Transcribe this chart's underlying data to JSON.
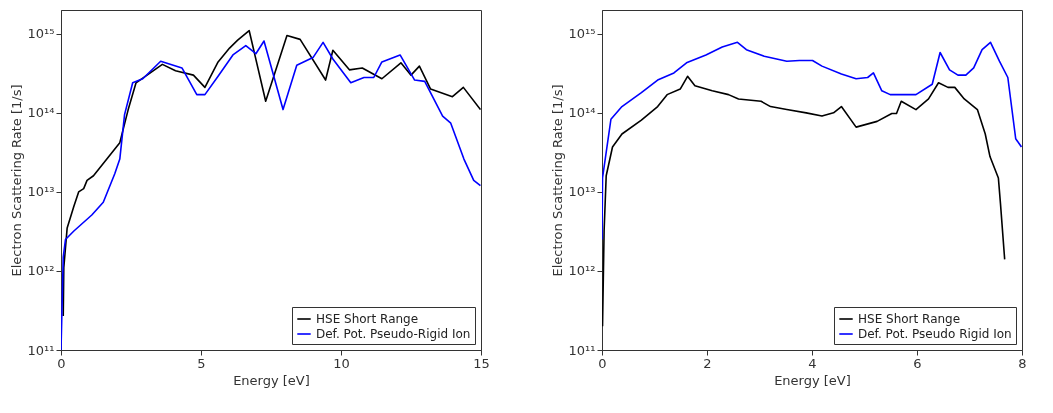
{
  "chart_data": [
    {
      "type": "line",
      "xlabel": "Energy [eV]",
      "ylabel": "Electron Scattering Rate [1/s]",
      "log": "y",
      "legend": "bottom right",
      "grid": false,
      "xlim": [
        0,
        15
      ],
      "xticks": [
        0,
        5,
        10,
        15
      ],
      "ylim": [
        100000000000.0,
        2000000000000000.0
      ],
      "yticks": [
        {
          "value": 100000000000.0,
          "label": "10¹¹"
        },
        {
          "value": 1000000000000.0,
          "label": "10¹²"
        },
        {
          "value": 10000000000000.0,
          "label": "10¹³"
        },
        {
          "value": 100000000000000.0,
          "label": "10¹⁴"
        },
        {
          "value": 1000000000000000.0,
          "label": "10¹⁵"
        }
      ],
      "series": [
        {
          "name": "HSE Short Range",
          "color": "#000000",
          "x": [
            0.08,
            0.1,
            0.22,
            0.46,
            0.63,
            0.81,
            0.93,
            1.16,
            2.1,
            2.4,
            2.68,
            3.62,
            4.09,
            4.73,
            5.14,
            5.61,
            6.02,
            6.31,
            6.72,
            7.31,
            8.07,
            8.54,
            9.45,
            9.71,
            10.3,
            10.76,
            11.46,
            12.14,
            12.5,
            12.8,
            13.2,
            13.98,
            14.37,
            14.98
          ],
          "values": [
            270000000000.0,
            1100000000000.0,
            3500000000000.0,
            6600000000000.0,
            10000000000000.0,
            11000000000000.0,
            14000000000000.0,
            16000000000000.0,
            42000000000000.0,
            110000000000000.0,
            240000000000000.0,
            410000000000000.0,
            340000000000000.0,
            300000000000000.0,
            210000000000000.0,
            440000000000000.0,
            660000000000000.0,
            830000000000000.0,
            1100000000000000.0,
            140000000000000.0,
            950000000000000.0,
            850000000000000.0,
            260000000000000.0,
            620000000000000.0,
            350000000000000.0,
            370000000000000.0,
            270000000000000.0,
            430000000000000.0,
            300000000000000.0,
            390000000000000.0,
            200000000000000.0,
            160000000000000.0,
            210000000000000.0,
            110000000000000.0
          ]
        },
        {
          "name": "Def. Pot. Pseudo-Rigid Ion",
          "color": "#0000ff",
          "x": [
            0,
            0.08,
            0.16,
            0.46,
            1.1,
            1.51,
            1.92,
            2.1,
            2.27,
            2.56,
            2.92,
            3.56,
            4.32,
            4.85,
            5.14,
            5.61,
            6.14,
            6.6,
            6.96,
            7.25,
            7.93,
            8.42,
            9.0,
            9.36,
            9.71,
            10.35,
            10.82,
            11.17,
            11.46,
            12.11,
            12.63,
            12.99,
            13.63,
            13.92,
            14.39,
            14.74,
            14.98
          ],
          "values": [
            100000000000.0,
            1500000000000.0,
            2500000000000.0,
            3200000000000.0,
            5100000000000.0,
            7400000000000.0,
            17000000000000.0,
            26000000000000.0,
            95000000000000.0,
            240000000000000.0,
            270000000000000.0,
            450000000000000.0,
            370000000000000.0,
            170000000000000.0,
            170000000000000.0,
            290000000000000.0,
            540000000000000.0,
            710000000000000.0,
            560000000000000.0,
            810000000000000.0,
            110000000000000.0,
            400000000000000.0,
            500000000000000.0,
            780000000000000.0,
            480000000000000.0,
            240000000000000.0,
            280000000000000.0,
            280000000000000.0,
            440000000000000.0,
            540000000000000.0,
            260000000000000.0,
            250000000000000.0,
            91000000000000.0,
            74000000000000.0,
            26000000000000.0,
            14000000000000.0,
            12000000000000.0
          ]
        }
      ]
    },
    {
      "type": "line",
      "xlabel": "Energy [eV]",
      "ylabel": "Electron Scattering Rate [1/s]",
      "log": "y",
      "legend": "bottom right",
      "grid": false,
      "xlim": [
        0,
        8
      ],
      "xticks": [
        0,
        2,
        4,
        6,
        8
      ],
      "ylim": [
        100000000000.0,
        2000000000000000.0
      ],
      "yticks": [
        {
          "value": 100000000000.0,
          "label": "10¹¹"
        },
        {
          "value": 1000000000000.0,
          "label": "10¹²"
        },
        {
          "value": 10000000000000.0,
          "label": "10¹³"
        },
        {
          "value": 100000000000000.0,
          "label": "10¹⁴"
        },
        {
          "value": 1000000000000000.0,
          "label": "10¹⁵"
        }
      ],
      "series": [
        {
          "name": "HSE Short Range",
          "color": "#000000",
          "x": [
            0.01,
            0.04,
            0.08,
            0.2,
            0.38,
            0.75,
            1.06,
            1.24,
            1.49,
            1.63,
            1.77,
            2.1,
            2.41,
            2.6,
            3.03,
            3.21,
            3.52,
            3.89,
            4.19,
            4.41,
            4.56,
            4.84,
            5.24,
            5.52,
            5.61,
            5.7,
            5.98,
            6.22,
            6.41,
            6.59,
            6.72,
            6.9,
            7.15,
            7.3,
            7.39,
            7.55,
            7.59,
            7.67
          ],
          "values": [
            200000000000.0,
            3200000000000.0,
            16000000000000.0,
            37000000000000.0,
            54000000000000.0,
            81000000000000.0,
            120000000000000.0,
            170000000000000.0,
            200000000000000.0,
            290000000000000.0,
            220000000000000.0,
            190000000000000.0,
            170000000000000.0,
            150000000000000.0,
            140000000000000.0,
            120000000000000.0,
            110000000000000.0,
            100000000000000.0,
            91000000000000.0,
            100000000000000.0,
            120000000000000.0,
            66000000000000.0,
            78000000000000.0,
            98000000000000.0,
            98000000000000.0,
            140000000000000.0,
            110000000000000.0,
            150000000000000.0,
            240000000000000.0,
            210000000000000.0,
            210000000000000.0,
            150000000000000.0,
            110000000000000.0,
            54000000000000.0,
            28000000000000.0,
            15000000000000.0,
            7100000000000.0,
            1400000000000.0
          ]
        },
        {
          "name": "Def. Pot. Pseudo Rigid Ion",
          "color": "#0000ff",
          "x": [
            0,
            0.01,
            0.17,
            0.38,
            0.75,
            1.06,
            1.37,
            1.61,
            1.98,
            2.29,
            2.58,
            2.75,
            3.09,
            3.52,
            3.76,
            4.01,
            4.19,
            4.56,
            4.84,
            5.06,
            5.17,
            5.33,
            5.49,
            5.98,
            6.29,
            6.44,
            6.62,
            6.78,
            6.93,
            7.08,
            7.24,
            7.4,
            7.57,
            7.73,
            7.88,
            7.99
          ],
          "values": [
            2500000000000.0,
            15000000000000.0,
            83000000000000.0,
            120000000000000.0,
            180000000000000.0,
            260000000000000.0,
            320000000000000.0,
            430000000000000.0,
            540000000000000.0,
            680000000000000.0,
            780000000000000.0,
            630000000000000.0,
            520000000000000.0,
            450000000000000.0,
            460000000000000.0,
            460000000000000.0,
            390000000000000.0,
            310000000000000.0,
            270000000000000.0,
            280000000000000.0,
            320000000000000.0,
            190000000000000.0,
            170000000000000.0,
            170000000000000.0,
            230000000000000.0,
            580000000000000.0,
            350000000000000.0,
            300000000000000.0,
            300000000000000.0,
            370000000000000.0,
            630000000000000.0,
            780000000000000.0,
            450000000000000.0,
            280000000000000.0,
            47000000000000.0,
            37000000000000.0
          ]
        }
      ]
    }
  ]
}
